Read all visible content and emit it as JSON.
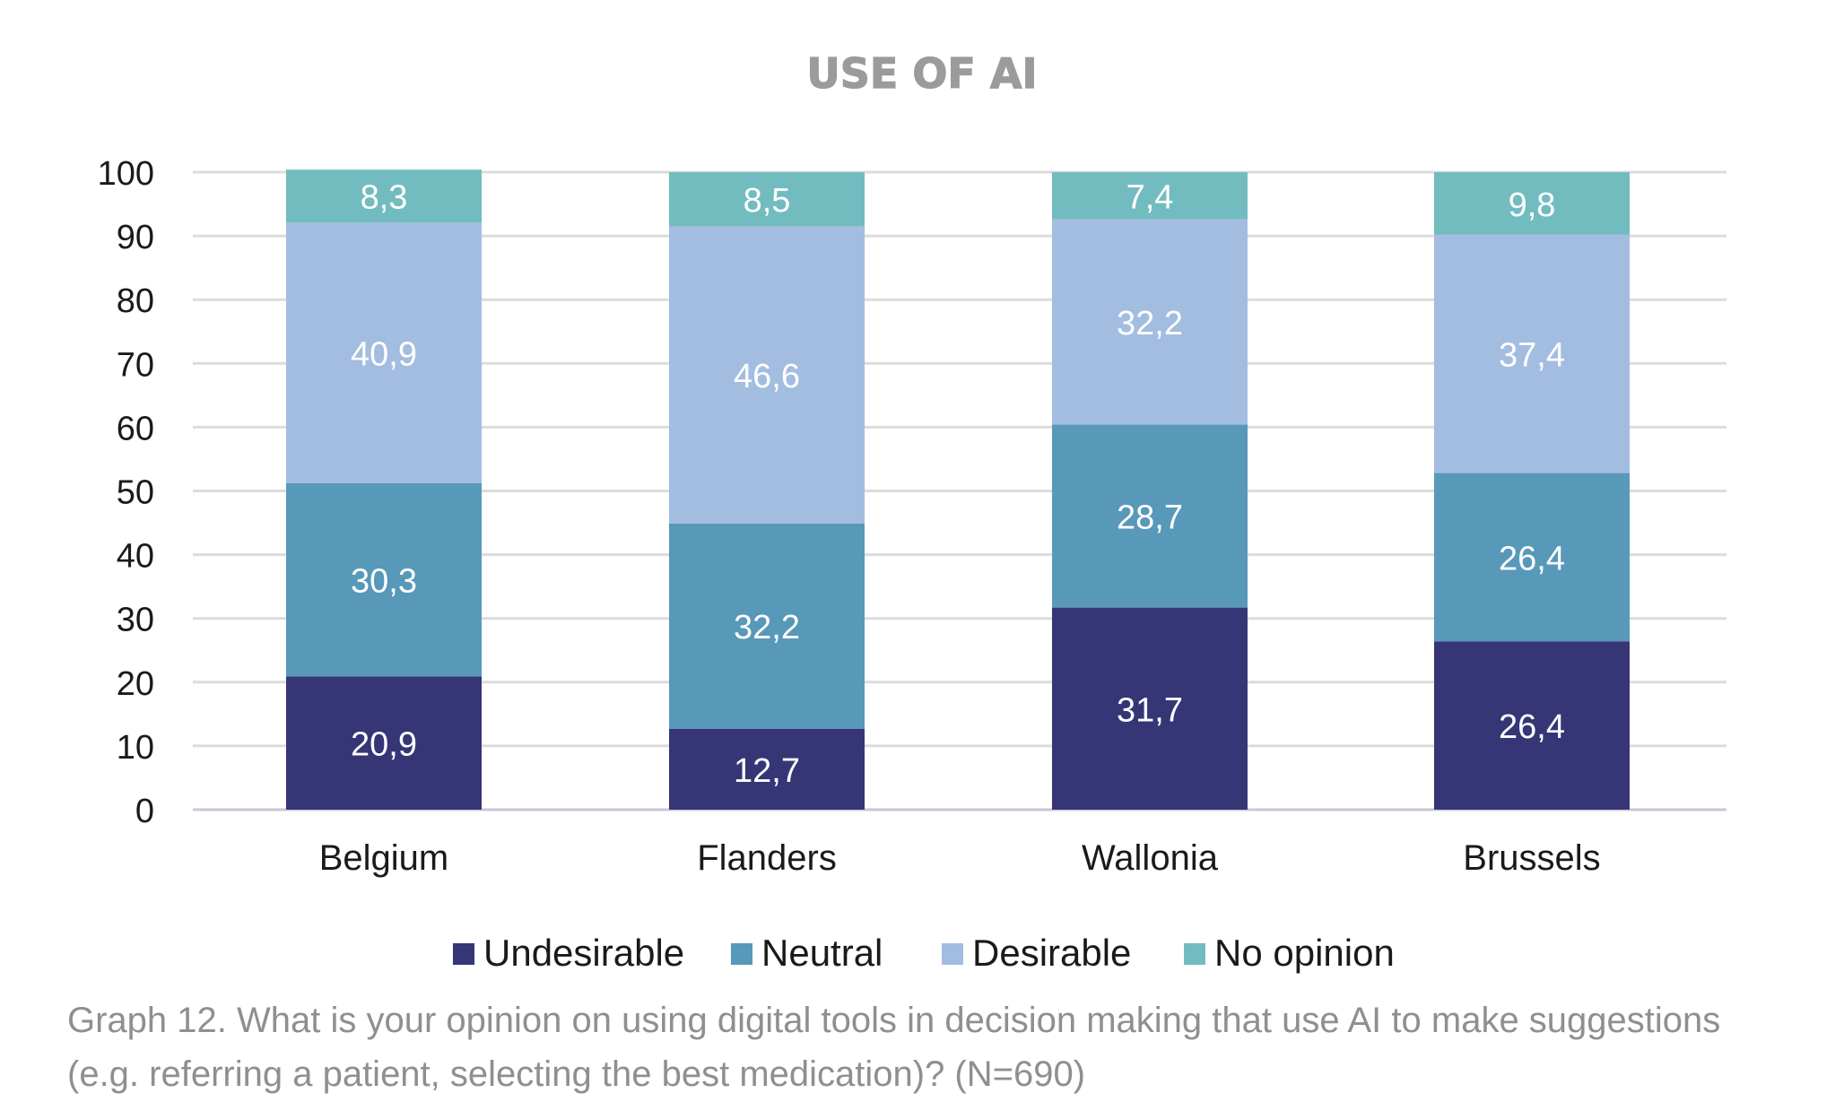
{
  "chart_data": {
    "type": "bar",
    "stacked": true,
    "title": "USE OF AI",
    "categories": [
      "Belgium",
      "Flanders",
      "Wallonia",
      "Brussels"
    ],
    "series": [
      {
        "name": "Undesirable",
        "color": "#363576",
        "values": [
          20.9,
          12.7,
          31.7,
          26.4
        ],
        "labels": [
          "20,9",
          "12,7",
          "31,7",
          "26,4"
        ]
      },
      {
        "name": "Neutral",
        "color": "#5898b9",
        "values": [
          30.3,
          32.2,
          28.7,
          26.4
        ],
        "labels": [
          "30,3",
          "32,2",
          "28,7",
          "26,4"
        ]
      },
      {
        "name": "Desirable",
        "color": "#a3bde0",
        "values": [
          40.9,
          46.6,
          32.2,
          37.4
        ],
        "labels": [
          "40,9",
          "46,6",
          "32,2",
          "37,4"
        ]
      },
      {
        "name": "No opinion",
        "color": "#72bcc0",
        "values": [
          8.3,
          8.5,
          7.4,
          9.8
        ],
        "labels": [
          "8,3",
          "8,5",
          "7,4",
          "9,8"
        ]
      }
    ],
    "yticks": [
      "0",
      "10",
      "20",
      "30",
      "40",
      "50",
      "60",
      "70",
      "80",
      "90",
      "100"
    ],
    "ylim": [
      0,
      100
    ],
    "grid": true,
    "legend_position": "bottom"
  },
  "caption": "Graph 12. What is your opinion on using digital tools in decision making that use AI to make suggestions (e.g. referring a patient, selecting the best medication)? (N=690)"
}
